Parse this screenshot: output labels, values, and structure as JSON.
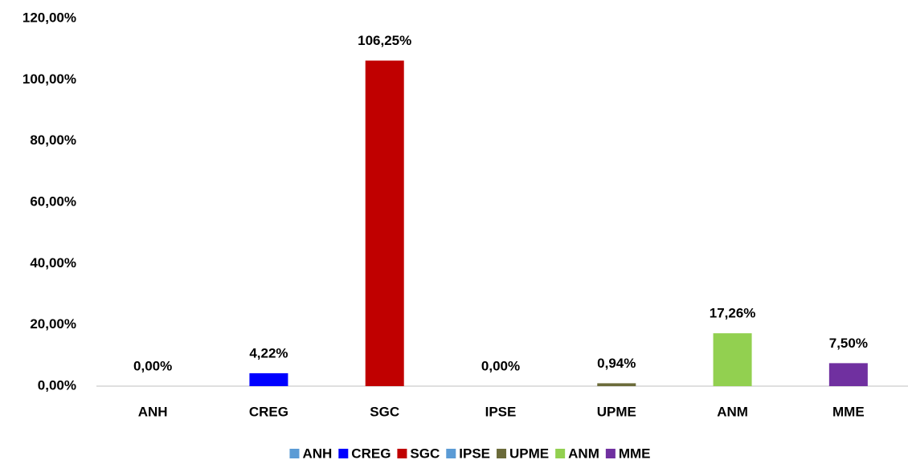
{
  "chart_data": {
    "type": "bar",
    "categories": [
      "ANH",
      "CREG",
      "SGC",
      "IPSE",
      "UPME",
      "ANM",
      "MME"
    ],
    "values": [
      0,
      4.22,
      106.25,
      0,
      0.94,
      17.26,
      7.5
    ],
    "value_labels": [
      "0,00%",
      "4,22%",
      "106,25%",
      "0,00%",
      "0,94%",
      "17,26%",
      "7,50%"
    ],
    "colors": [
      "#5b9bd5",
      "#0000ff",
      "#c00000",
      "#5b9bd5",
      "#6b6b3a",
      "#92d050",
      "#7030a0"
    ],
    "ylim": [
      0,
      120
    ],
    "yticks": [
      {
        "value": 0,
        "label": "0,00%"
      },
      {
        "value": 20,
        "label": "20,00%"
      },
      {
        "value": 40,
        "label": "40,00%"
      },
      {
        "value": 60,
        "label": "60,00%"
      },
      {
        "value": 80,
        "label": "80,00%"
      },
      {
        "value": 100,
        "label": "100,00%"
      },
      {
        "value": 120,
        "label": "120,00%"
      }
    ],
    "grid": false,
    "legend": "bottom"
  }
}
